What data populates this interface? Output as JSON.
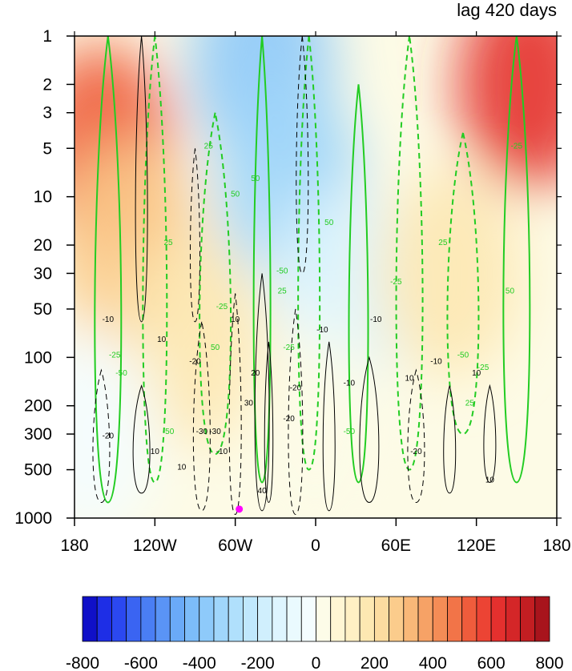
{
  "chart_data": {
    "type": "heatmap",
    "title": "lag 420 days",
    "x_ticks": [
      "180",
      "120W",
      "60W",
      "0",
      "60E",
      "120E",
      "180"
    ],
    "x_values": [
      -180,
      -120,
      -60,
      0,
      60,
      120,
      180
    ],
    "y_ticks": [
      "1",
      "2",
      "3",
      "5",
      "10",
      "20",
      "30",
      "50",
      "100",
      "200",
      "300",
      "500",
      "1000"
    ],
    "y_values": [
      1,
      2,
      3,
      5,
      10,
      20,
      30,
      50,
      100,
      200,
      300,
      500,
      1000
    ],
    "y_scale": "log",
    "y_reversed": true,
    "xlim": [
      -180,
      180
    ],
    "ylim": [
      1000,
      1
    ],
    "colorbar": {
      "ticks": [
        "-800",
        "-600",
        "-400",
        "-200",
        "0",
        "200",
        "400",
        "600",
        "800"
      ],
      "values": [
        -800,
        -600,
        -400,
        -200,
        0,
        200,
        400,
        600,
        800
      ],
      "levels": [
        -800,
        -750,
        -700,
        -650,
        -600,
        -550,
        -500,
        -450,
        -400,
        -350,
        -300,
        -250,
        -200,
        -150,
        -100,
        -50,
        0,
        50,
        100,
        150,
        200,
        250,
        300,
        350,
        400,
        450,
        500,
        550,
        600,
        650,
        700,
        750,
        800
      ],
      "colors": [
        "#1010c8",
        "#1e2ee6",
        "#2b48f0",
        "#3a64f2",
        "#4a7ef4",
        "#5a94f6",
        "#6aaaf8",
        "#7cbcf9",
        "#8ecafa",
        "#a0d6fb",
        "#b0e0fc",
        "#c0e8fd",
        "#d0effd",
        "#def5fe",
        "#eafafe",
        "#f4fdff",
        "#fdfce8",
        "#fff6d4",
        "#fff0c4",
        "#fde8b2",
        "#fcdca0",
        "#fbcc8c",
        "#f9b878",
        "#f6a266",
        "#f48c56",
        "#f27448",
        "#ef5c3c",
        "#ec4434",
        "#e4302e",
        "#d42628",
        "#c21e22",
        "#a8141c"
      ]
    },
    "filled_field": [
      {
        "x": -160,
        "p": 5,
        "v": 500
      },
      {
        "x": -140,
        "p": 20,
        "v": 250
      },
      {
        "x": -90,
        "p": 80,
        "v": 150
      },
      {
        "x": -40,
        "p": 1.5,
        "v": -400
      },
      {
        "x": -20,
        "p": 8,
        "v": -350
      },
      {
        "x": 20,
        "p": 40,
        "v": -150
      },
      {
        "x": 100,
        "p": 30,
        "v": 150
      },
      {
        "x": 160,
        "p": 2,
        "v": 600
      },
      {
        "x": 0,
        "p": 300,
        "v": 20
      },
      {
        "x": -170,
        "p": 300,
        "v": -50
      }
    ],
    "contour_labels_green": [
      "25",
      "50",
      "-50",
      "-25",
      "-50",
      "25",
      "50",
      "25",
      "50",
      "-50",
      "-25",
      "-25",
      "-50",
      "25",
      "50",
      "25",
      "-25",
      "-50",
      "-25",
      "50",
      "-25"
    ],
    "contour_labels_black": [
      "-10",
      "10",
      "-20",
      "10",
      "20",
      "-30",
      "-20",
      "-10",
      "-10",
      "10",
      "10",
      "-10",
      "-20",
      "-30",
      "-10",
      "10",
      "10",
      "-20",
      "-10",
      "40",
      "-20",
      "10",
      "30"
    ],
    "marker": {
      "x": -57,
      "p": 880,
      "color": "#ff00ff"
    }
  }
}
